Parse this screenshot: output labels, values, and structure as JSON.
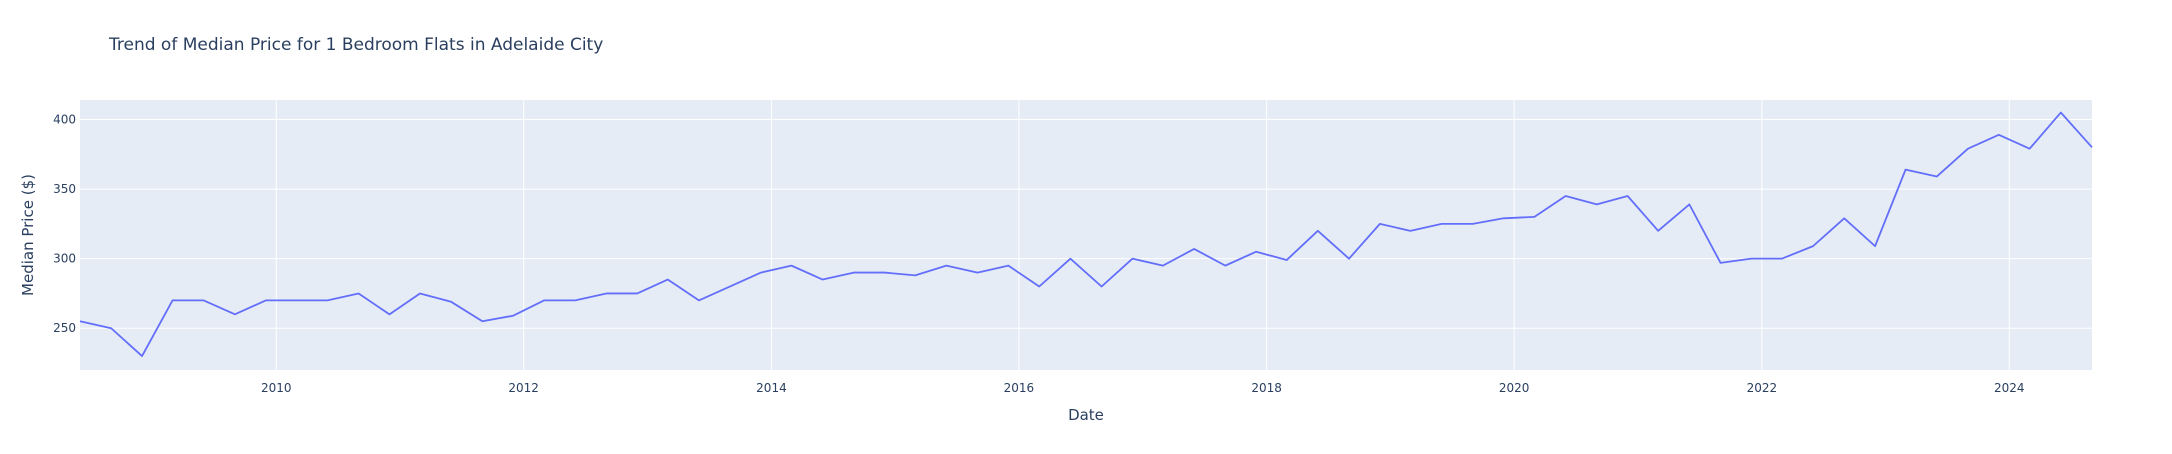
{
  "chart_data": {
    "type": "line",
    "title": "Trend of Median Price for 1 Bedroom Flats in Adelaide City",
    "xlabel": "Date",
    "ylabel": "Median Price ($)",
    "xlim": [
      "2008-06-01",
      "2024-09-01"
    ],
    "ylim": [
      220,
      414
    ],
    "x_ticks": [
      "2010",
      "2012",
      "2014",
      "2016",
      "2018",
      "2020",
      "2022",
      "2024"
    ],
    "y_ticks": [
      "250",
      "300",
      "350",
      "400"
    ],
    "grid": true,
    "legend": "none",
    "colors": {
      "line": "#636efa",
      "plot_bg": "#e5ecf6",
      "grid": "#ffffff",
      "text": "#2a3f5f",
      "title": "#2a3f5f"
    },
    "series": [
      {
        "x": [
          "2008-06-01",
          "2008-09-01",
          "2008-12-01",
          "2009-03-01",
          "2009-06-01",
          "2009-09-01",
          "2009-12-01",
          "2010-03-01",
          "2010-06-01",
          "2010-09-01",
          "2010-12-01",
          "2011-03-01",
          "2011-06-01",
          "2011-09-01",
          "2011-12-01",
          "2012-03-01",
          "2012-06-01",
          "2012-09-01",
          "2012-12-01",
          "2013-03-01",
          "2013-06-01",
          "2013-09-01",
          "2013-12-01",
          "2014-03-01",
          "2014-06-01",
          "2014-09-01",
          "2014-12-01",
          "2015-03-01",
          "2015-06-01",
          "2015-09-01",
          "2015-12-01",
          "2016-03-01",
          "2016-06-01",
          "2016-09-01",
          "2016-12-01",
          "2017-03-01",
          "2017-06-01",
          "2017-09-01",
          "2017-12-01",
          "2018-03-01",
          "2018-06-01",
          "2018-09-01",
          "2018-12-01",
          "2019-03-01",
          "2019-06-01",
          "2019-09-01",
          "2019-12-01",
          "2020-03-01",
          "2020-06-01",
          "2020-09-01",
          "2020-12-01",
          "2021-03-01",
          "2021-06-01",
          "2021-09-01",
          "2021-12-01",
          "2022-03-01",
          "2022-06-01",
          "2022-09-01",
          "2022-12-01",
          "2023-03-01",
          "2023-06-01",
          "2023-09-01",
          "2023-12-01",
          "2024-03-01",
          "2024-06-01",
          "2024-09-01"
        ],
        "values": [
          255,
          250,
          230,
          270,
          270,
          260,
          270,
          270,
          270,
          275,
          260,
          275,
          269,
          255,
          259,
          270,
          270,
          275,
          275,
          285,
          270,
          280,
          290,
          295,
          285,
          290,
          290,
          288,
          295,
          290,
          295,
          280,
          300,
          280,
          300,
          295,
          307,
          295,
          305,
          299,
          320,
          300,
          325,
          320,
          325,
          325,
          329,
          330,
          345,
          339,
          345,
          320,
          339,
          297,
          300,
          300,
          309,
          329,
          309,
          364,
          359,
          379,
          389,
          379,
          405,
          380
        ]
      }
    ]
  }
}
